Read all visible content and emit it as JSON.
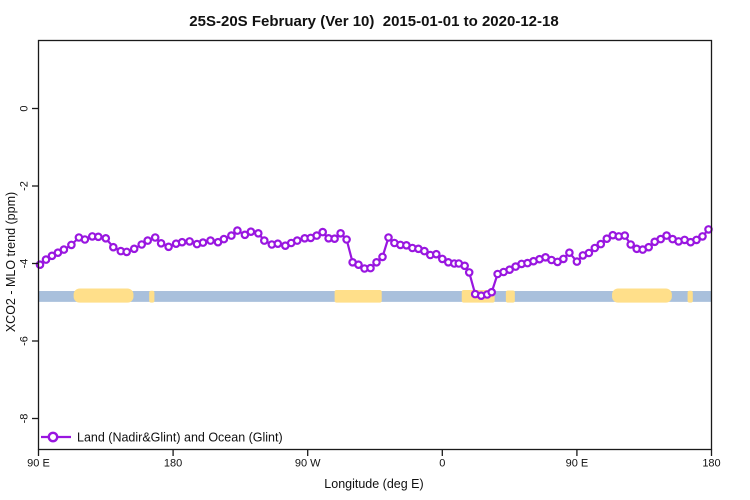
{
  "colors": {
    "series_purple": "#9916E0",
    "marker_fill": "#FFFFFF",
    "ocean_blue": "#A9C0DC",
    "land_yellow": "#FFDF8A",
    "axis_black": "#1A1A1A",
    "background": "#FFFFFF"
  },
  "chart_data": {
    "type": "line",
    "title": "25S-20S February (Ver 10)  2015-01-01 to 2020-12-18",
    "xlabel": "Longitude (deg E)",
    "ylabel": "XCO2 - MLO trend (ppm)",
    "xlim_deg_east_wrapped": [
      90,
      540
    ],
    "ylim": [
      -8.8,
      1.8
    ],
    "x_tick_positions": [
      90,
      180,
      270,
      360,
      450,
      540
    ],
    "x_tick_labels": [
      "90 E",
      "180",
      "90 W",
      "0",
      "90 E",
      "180"
    ],
    "y_ticks": [
      0,
      -2,
      -4,
      -6,
      -8
    ],
    "grid": false,
    "legend_position": "bottom-left",
    "series": [
      {
        "name": "Land (Nadir&Glint) and Ocean (Glint)",
        "marker": "open-circle",
        "points": [
          [
            91,
            -4.03
          ],
          [
            95,
            -3.9
          ],
          [
            99,
            -3.8
          ],
          [
            103,
            -3.72
          ],
          [
            107,
            -3.64
          ],
          [
            112,
            -3.52
          ],
          [
            117,
            -3.33
          ],
          [
            121,
            -3.38
          ],
          [
            126,
            -3.3
          ],
          [
            130,
            -3.31
          ],
          [
            135,
            -3.35
          ],
          [
            140,
            -3.58
          ],
          [
            145,
            -3.68
          ],
          [
            149,
            -3.7
          ],
          [
            154,
            -3.62
          ],
          [
            159,
            -3.51
          ],
          [
            163,
            -3.41
          ],
          [
            168,
            -3.33
          ],
          [
            172,
            -3.48
          ],
          [
            177,
            -3.57
          ],
          [
            182,
            -3.49
          ],
          [
            186,
            -3.45
          ],
          [
            191,
            -3.43
          ],
          [
            196,
            -3.5
          ],
          [
            200,
            -3.46
          ],
          [
            205,
            -3.41
          ],
          [
            210,
            -3.45
          ],
          [
            214,
            -3.37
          ],
          [
            219,
            -3.28
          ],
          [
            223,
            -3.15
          ],
          [
            228,
            -3.26
          ],
          [
            232,
            -3.18
          ],
          [
            237,
            -3.22
          ],
          [
            241,
            -3.41
          ],
          [
            246,
            -3.51
          ],
          [
            250,
            -3.49
          ],
          [
            255,
            -3.54
          ],
          [
            259,
            -3.47
          ],
          [
            263,
            -3.41
          ],
          [
            268,
            -3.35
          ],
          [
            272,
            -3.34
          ],
          [
            276,
            -3.28
          ],
          [
            280,
            -3.19
          ],
          [
            284,
            -3.35
          ],
          [
            288,
            -3.36
          ],
          [
            292,
            -3.22
          ],
          [
            296,
            -3.38
          ],
          [
            300,
            -3.97
          ],
          [
            304,
            -4.03
          ],
          [
            308,
            -4.13
          ],
          [
            312,
            -4.12
          ],
          [
            316,
            -3.97
          ],
          [
            320,
            -3.83
          ],
          [
            324,
            -3.33
          ],
          [
            328,
            -3.47
          ],
          [
            332,
            -3.52
          ],
          [
            336,
            -3.53
          ],
          [
            340,
            -3.6
          ],
          [
            344,
            -3.62
          ],
          [
            348,
            -3.68
          ],
          [
            352,
            -3.78
          ],
          [
            356,
            -3.76
          ],
          [
            360,
            -3.88
          ],
          [
            364,
            -3.97
          ],
          [
            368,
            -4.0
          ],
          [
            371,
            -4.0
          ],
          [
            375,
            -4.06
          ],
          [
            378,
            -4.23
          ],
          [
            382,
            -4.79
          ],
          [
            386,
            -4.83
          ],
          [
            390,
            -4.8
          ],
          [
            393,
            -4.74
          ],
          [
            397,
            -4.27
          ],
          [
            401,
            -4.22
          ],
          [
            405,
            -4.16
          ],
          [
            409,
            -4.08
          ],
          [
            413,
            -4.01
          ],
          [
            417,
            -3.99
          ],
          [
            421,
            -3.94
          ],
          [
            425,
            -3.89
          ],
          [
            429,
            -3.84
          ],
          [
            433,
            -3.91
          ],
          [
            437,
            -3.96
          ],
          [
            441,
            -3.88
          ],
          [
            445,
            -3.72
          ],
          [
            450,
            -3.95
          ],
          [
            454,
            -3.79
          ],
          [
            458,
            -3.73
          ],
          [
            462,
            -3.6
          ],
          [
            466,
            -3.5
          ],
          [
            470,
            -3.36
          ],
          [
            474,
            -3.27
          ],
          [
            478,
            -3.3
          ],
          [
            482,
            -3.28
          ],
          [
            486,
            -3.51
          ],
          [
            490,
            -3.62
          ],
          [
            494,
            -3.64
          ],
          [
            498,
            -3.58
          ],
          [
            502,
            -3.44
          ],
          [
            506,
            -3.37
          ],
          [
            510,
            -3.28
          ],
          [
            514,
            -3.37
          ],
          [
            518,
            -3.43
          ],
          [
            522,
            -3.39
          ],
          [
            526,
            -3.45
          ],
          [
            530,
            -3.39
          ],
          [
            534,
            -3.3
          ],
          [
            538,
            -3.12
          ]
        ]
      }
    ],
    "map_strip": {
      "description": "land-ocean strip along latitude band 25S-20S",
      "top_ppm": -4.71,
      "bottom_ppm": -4.99,
      "land_patches": [
        {
          "name": "australia",
          "lon": [
            113.5,
            153.5
          ],
          "raise": 2.5
        },
        {
          "name": "new-caledonia",
          "lon": [
            164,
            167.5
          ],
          "raise": 0.3
        },
        {
          "name": "south-america",
          "lon": [
            288,
            319.5
          ],
          "raise": 1.0
        },
        {
          "name": "africa",
          "lon": [
            373,
            395
          ],
          "raise": 1.0
        },
        {
          "name": "madagascar",
          "lon": [
            402.5,
            408.5
          ],
          "raise": 0.5
        },
        {
          "name": "australia-repeat",
          "lon": [
            473.5,
            513.5
          ],
          "raise": 2.5
        },
        {
          "name": "new-caledonia-repeat",
          "lon": [
            524,
            527.5
          ],
          "raise": 0.3
        }
      ]
    }
  }
}
